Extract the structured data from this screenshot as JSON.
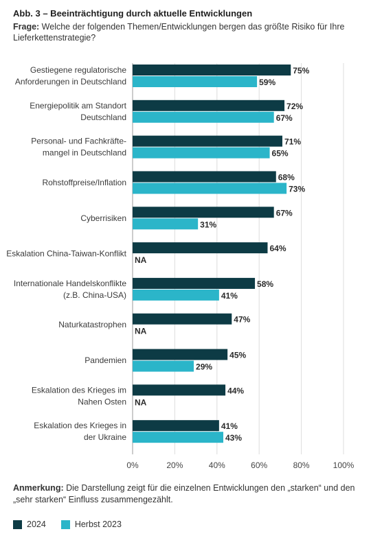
{
  "header": {
    "title": "Abb. 3 – Beeinträchtigung durch aktuelle Entwicklungen",
    "question_lead": "Frage:",
    "question_text": " Welche der folgenden Themen/Entwicklungen bergen das größte Risiko für Ihre Lieferkettenstrategie?"
  },
  "chart_data": {
    "type": "bar",
    "orientation": "horizontal",
    "categories": [
      [
        "Gestiegene regulatorische",
        "Anforderungen in Deutschland"
      ],
      [
        "Energiepolitik am Standort",
        "Deutschland"
      ],
      [
        "Personal- und Fachkräfte-",
        "mangel in Deutschland"
      ],
      [
        "Rohstoffpreise/Inflation"
      ],
      [
        "Cyberrisiken"
      ],
      [
        "Eskalation China-Taiwan-Konflikt"
      ],
      [
        "Internationale Handelskonflikte",
        "(z.B. China-USA)"
      ],
      [
        "Naturkatastrophen"
      ],
      [
        "Pandemien"
      ],
      [
        "Eskalation des Krieges im",
        "Nahen Osten"
      ],
      [
        "Eskalation des Krieges in",
        "der Ukraine"
      ]
    ],
    "series": [
      {
        "name": "2024",
        "color": "#0d3b45",
        "values": [
          75,
          72,
          71,
          68,
          67,
          64,
          58,
          47,
          45,
          44,
          41
        ]
      },
      {
        "name": "Herbst 2023",
        "color": "#2bb5c9",
        "values": [
          59,
          67,
          65,
          73,
          31,
          null,
          41,
          null,
          29,
          null,
          43
        ]
      }
    ],
    "missing_label": "NA",
    "value_suffix": "%",
    "xlim": [
      0,
      100
    ],
    "xticks": [
      "0%",
      "20%",
      "40%",
      "60%",
      "80%",
      "100%"
    ],
    "grid": true
  },
  "footer": {
    "note_lead": "Anmerkung:",
    "note_text": " Die Darstellung zeigt für die einzelnen Entwicklungen den „starken“ und den „sehr starken“ Einfluss zusammengezählt."
  },
  "legend": [
    {
      "label": "2024",
      "color": "#0d3b45"
    },
    {
      "label": "Herbst 2023",
      "color": "#2bb5c9"
    }
  ]
}
